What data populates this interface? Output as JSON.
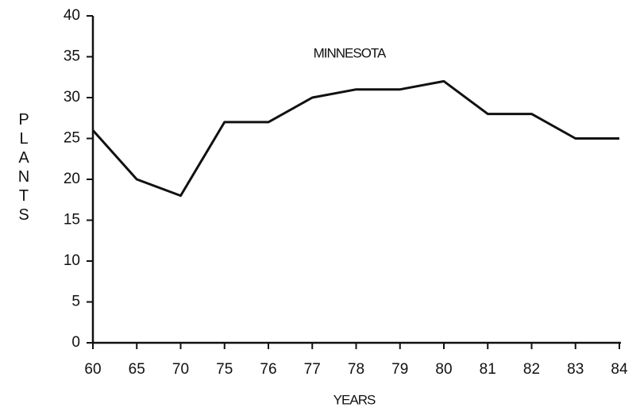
{
  "chart_data": {
    "type": "line",
    "title": "MINNESOTA",
    "x_label": "YEARS",
    "y_label": "PLANTS",
    "categories": [
      "60",
      "65",
      "70",
      "75",
      "76",
      "77",
      "78",
      "79",
      "80",
      "81",
      "82",
      "83",
      "84"
    ],
    "values": [
      26,
      20,
      18,
      27,
      27,
      30,
      31,
      31,
      32,
      28,
      28,
      25,
      25
    ],
    "color": "#111111",
    "ylim": [
      0,
      40
    ],
    "yticks": [
      0,
      5,
      10,
      15,
      20,
      25,
      30,
      35,
      40
    ],
    "grid": false
  }
}
